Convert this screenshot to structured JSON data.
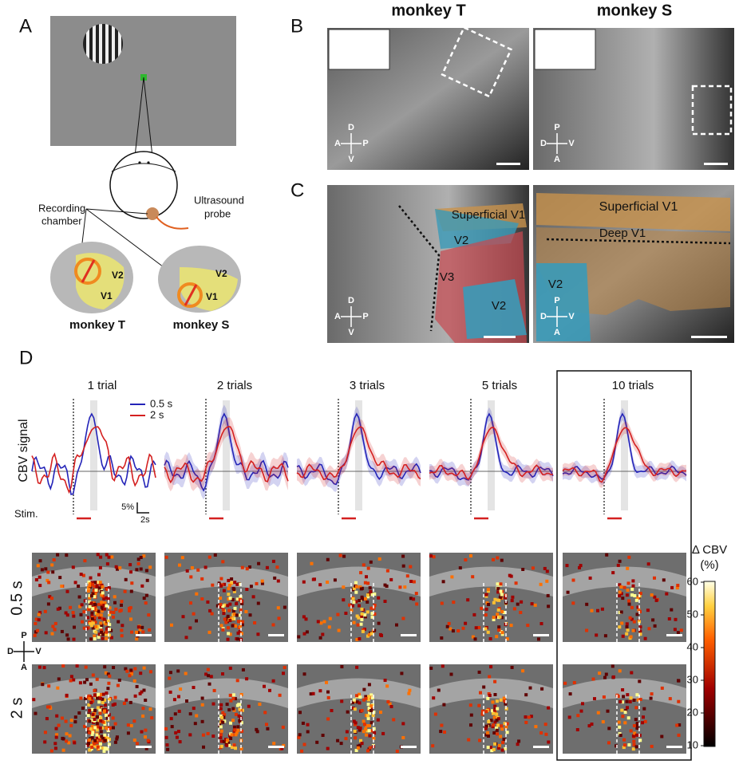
{
  "panels": {
    "A": {
      "label": "A",
      "recording_chamber": [
        "Recording",
        "chamber"
      ],
      "ultrasound_probe": [
        "Ultrasound",
        "probe"
      ],
      "brains": [
        {
          "name": "monkey T",
          "v2": "V2",
          "v1": "V1"
        },
        {
          "name": "monkey S",
          "v2": "V2",
          "v1": "V1"
        }
      ]
    },
    "B": {
      "label": "B",
      "columns": [
        "monkey T",
        "monkey S"
      ],
      "compass": [
        {
          "top": "D",
          "bottom": "V",
          "left": "A",
          "right": "P"
        },
        {
          "top": "P",
          "bottom": "A",
          "left": "D",
          "right": "V"
        }
      ]
    },
    "C": {
      "label": "C",
      "left_regions": [
        "Superficial V1",
        "V2",
        "V3",
        "V2"
      ],
      "right_regions": [
        "Superficial V1",
        "Deep V1",
        "V2"
      ],
      "compass": [
        {
          "top": "D",
          "bottom": "V",
          "left": "A",
          "right": "P"
        },
        {
          "top": "P",
          "bottom": "A",
          "left": "D",
          "right": "V"
        }
      ]
    },
    "D": {
      "label": "D",
      "trials": [
        "1 trial",
        "2 trials",
        "3 trials",
        "5 trials",
        "10 trials"
      ],
      "legend": [
        {
          "name": "0.5 s",
          "color": "#2424b8"
        },
        {
          "name": "2 s",
          "color": "#d42020"
        }
      ],
      "ylabel": "CBV signal",
      "stim": "Stim.",
      "scale_y": "5%",
      "scale_x": "2s",
      "rows": [
        "0.5 s",
        "2 s"
      ],
      "compass": {
        "top": "P",
        "bottom": "A",
        "left": "D",
        "right": "V"
      },
      "colorbar": {
        "title": "Δ CBV",
        "unit": "(%)",
        "lim": [
          10,
          60
        ],
        "ticks": [
          10,
          20,
          30,
          40,
          50,
          60
        ]
      }
    }
  }
}
